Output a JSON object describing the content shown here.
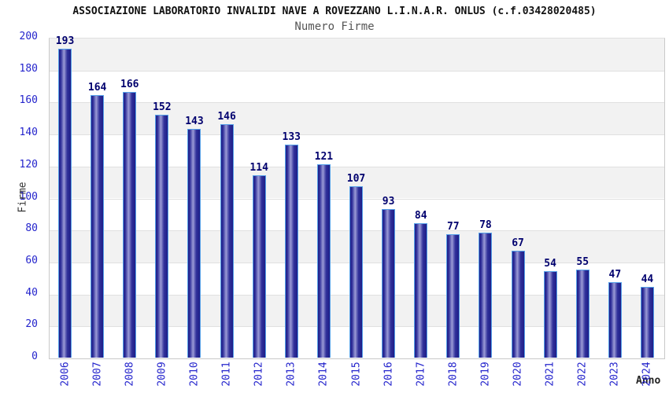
{
  "header": {
    "title": "ASSOCIAZIONE LABORATORIO INVALIDI NAVE A ROVEZZANO L.I.N.A.R. ONLUS (c.f.03428020485)",
    "subtitle": "Numero Firme"
  },
  "chart_data": {
    "type": "bar",
    "title": "ASSOCIAZIONE LABORATORIO INVALIDI NAVE A ROVEZZANO L.I.N.A.R. ONLUS (c.f.03428020485)",
    "subtitle": "Numero Firme",
    "xlabel": "Anno",
    "ylabel": "Firme",
    "categories": [
      "2006",
      "2007",
      "2008",
      "2009",
      "2010",
      "2011",
      "2012",
      "2013",
      "2014",
      "2015",
      "2016",
      "2017",
      "2018",
      "2019",
      "2020",
      "2021",
      "2022",
      "2023",
      "2024"
    ],
    "values": [
      193,
      164,
      166,
      152,
      143,
      146,
      114,
      133,
      121,
      107,
      93,
      84,
      77,
      78,
      67,
      54,
      55,
      47,
      44
    ],
    "ylim": [
      0,
      200
    ],
    "ytick_step": 20,
    "grid": true,
    "legend": false,
    "value_labels_shown": true,
    "colors": {
      "bar_edge_dark": "#1e1e87",
      "bar_mid": "#30309a",
      "bar_highlight": "#9a9ad6",
      "bar_border": "#55a0e8",
      "tick_label": "#2424cc",
      "value_label": "#00006e",
      "band_gray": "#f2f2f2",
      "band_white": "#ffffff",
      "gridline": "#e0e0e0",
      "plot_border": "#c9c9c9",
      "title_color": "#111111",
      "subtitle_color": "#555555",
      "axis_label_color": "#333333"
    }
  }
}
